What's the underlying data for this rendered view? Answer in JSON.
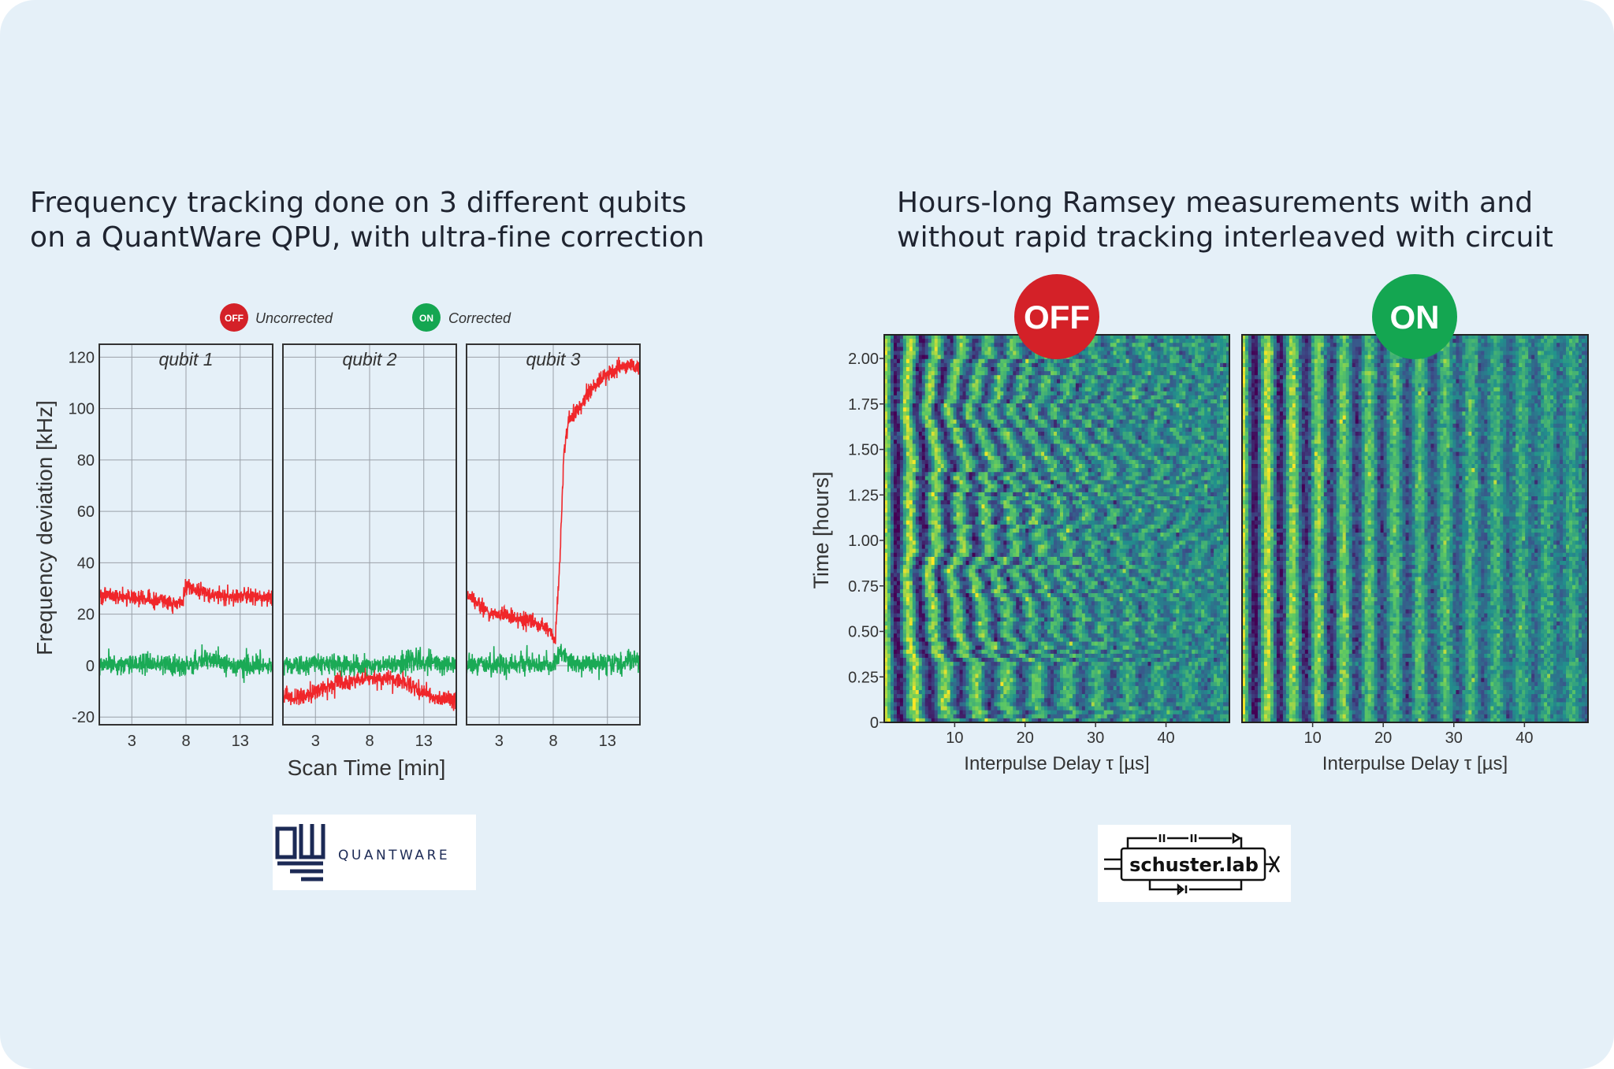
{
  "left_panel": {
    "title_lines": [
      "Frequency tracking done on 3 different qubits",
      "on a QuantWare QPU, with ultra-fine correction"
    ],
    "logo_text": "QUANTWARE"
  },
  "right_panel": {
    "title_lines": [
      "Hours-long Ramsey measurements with and",
      "without rapid tracking interleaved with circuit"
    ],
    "logo_text": "schuster.lab"
  },
  "colors": {
    "background": "#e5f0f8",
    "off_red": "#d42128",
    "on_green": "#14a651",
    "trace_red": "#f0262a",
    "trace_green": "#1aaa55"
  },
  "chart_data": [
    {
      "type": "line",
      "title": "",
      "subplot_titles": [
        "qubit 1",
        "qubit 2",
        "qubit 3"
      ],
      "xlabel": "Scan Time [min]",
      "ylabel": "Frequency deviation [kHz]",
      "xlim": [
        0,
        16
      ],
      "ylim": [
        -23,
        125
      ],
      "xticks": [
        3,
        8,
        13
      ],
      "yticks": [
        -20,
        0,
        20,
        40,
        60,
        80,
        100,
        120
      ],
      "grid": true,
      "legend": {
        "placement": "top-center",
        "entries": [
          {
            "badge": "OFF",
            "label": "Uncorrected",
            "color": "#f0262a"
          },
          {
            "badge": "ON",
            "label": "Corrected",
            "color": "#1aaa55"
          }
        ]
      },
      "series": [
        {
          "name": "Uncorrected",
          "subplot": "qubit 1",
          "x": [
            0,
            2,
            4,
            6,
            7.5,
            8,
            10,
            12,
            14,
            16
          ],
          "y": [
            27,
            27,
            26,
            25,
            24,
            31,
            28,
            27,
            27,
            26
          ]
        },
        {
          "name": "Corrected",
          "subplot": "qubit 1",
          "x": [
            0,
            4,
            8,
            10,
            12,
            16
          ],
          "y": [
            0,
            1,
            0,
            3,
            0,
            0
          ]
        },
        {
          "name": "Uncorrected",
          "subplot": "qubit 2",
          "x": [
            0,
            1,
            3,
            5,
            7,
            9,
            11,
            12,
            14,
            16
          ],
          "y": [
            -12,
            -13,
            -10,
            -7,
            -5,
            -5,
            -6,
            -9,
            -12,
            -14
          ]
        },
        {
          "name": "Corrected",
          "subplot": "qubit 2",
          "x": [
            0,
            4,
            8,
            12,
            16
          ],
          "y": [
            0,
            1,
            0,
            2,
            0
          ]
        },
        {
          "name": "Uncorrected",
          "subplot": "qubit 3",
          "x": [
            0,
            0.5,
            2,
            4,
            6,
            7.5,
            8.2,
            8.6,
            9,
            9.4,
            10,
            11,
            12,
            13,
            14,
            15,
            16
          ],
          "y": [
            28,
            26,
            21,
            19,
            17,
            14,
            10,
            40,
            85,
            95,
            98,
            104,
            110,
            113,
            116,
            117,
            115
          ]
        },
        {
          "name": "Corrected",
          "subplot": "qubit 3",
          "x": [
            0,
            4,
            8,
            8.6,
            10,
            13,
            16
          ],
          "y": [
            0,
            1,
            0,
            5,
            0,
            1,
            2
          ]
        }
      ]
    },
    {
      "type": "heatmap",
      "title": "",
      "panels": [
        {
          "label": "OFF",
          "color": "#d42128",
          "tracking": false
        },
        {
          "label": "ON",
          "color": "#14a651",
          "tracking": true
        }
      ],
      "xlabel": "Interpulse Delay τ [µs]",
      "ylabel": "Time [hours]",
      "xlim": [
        0,
        49
      ],
      "ylim": [
        0,
        2.13
      ],
      "xticks": [
        10,
        20,
        30,
        40
      ],
      "yticks": [
        "0",
        "0.25",
        "0.50",
        "0.75",
        "1.00",
        "1.25",
        "1.50",
        "1.75",
        "2.00"
      ],
      "colormap": "viridis",
      "fringe_period_us": 3.6
    }
  ]
}
